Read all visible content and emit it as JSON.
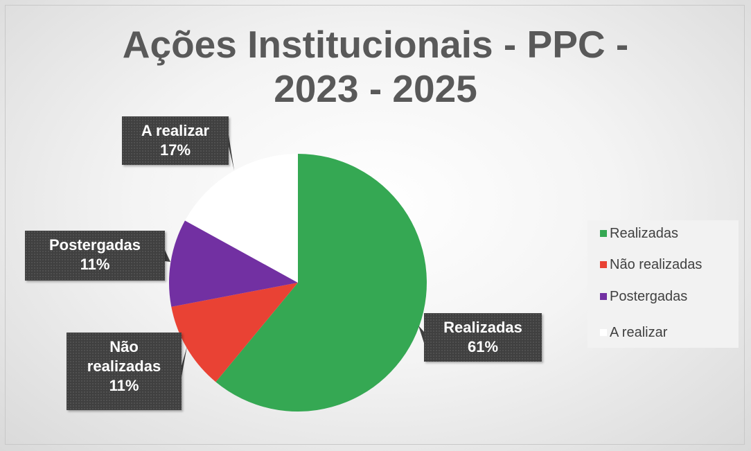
{
  "chart_data": {
    "type": "pie",
    "title": "Ações Institucionais - PPC - 2023 - 2025",
    "categories": [
      "Realizadas",
      "Não realizadas",
      "Postergadas",
      "A realizar"
    ],
    "values": [
      61,
      11,
      11,
      17
    ],
    "value_labels": [
      "61%",
      "11%",
      "11%",
      "17%"
    ],
    "colors": [
      "#35a853",
      "#e94234",
      "#7230a2",
      "#ffffff"
    ],
    "legend": "right"
  }
}
